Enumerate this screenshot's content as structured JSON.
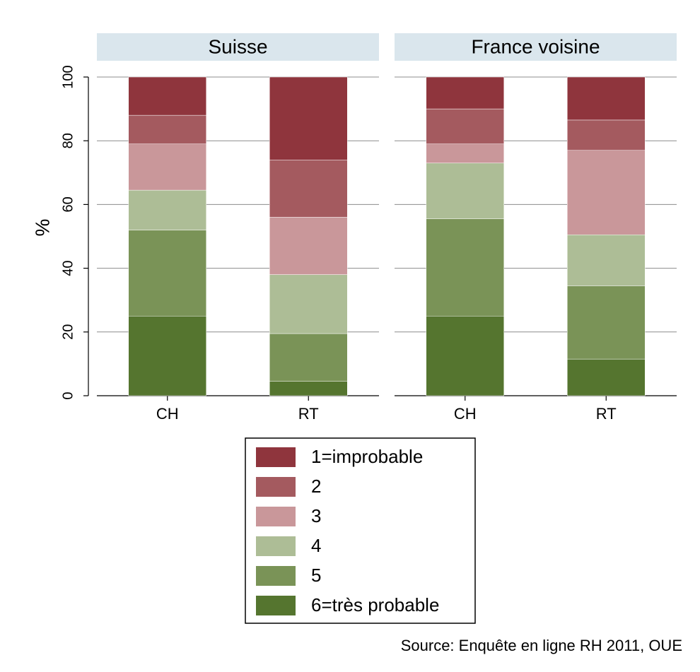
{
  "chart_data": {
    "type": "bar",
    "stacked": true,
    "ylabel": "%",
    "ylim": [
      0,
      100
    ],
    "yticks": [
      0,
      20,
      40,
      60,
      80,
      100
    ],
    "grid": true,
    "categories": [
      "CH",
      "RT"
    ],
    "panels": [
      "Suisse",
      "France voisine"
    ],
    "series": [
      {
        "name": "6=très probable",
        "color": "#55752f",
        "values": [
          [
            25,
            4.5
          ],
          [
            25,
            11.5
          ]
        ]
      },
      {
        "name": "5",
        "color": "#7a9357",
        "values": [
          [
            27,
            15
          ],
          [
            30.5,
            23
          ]
        ]
      },
      {
        "name": "4",
        "color": "#adbd96",
        "values": [
          [
            12.5,
            18.5
          ],
          [
            17.5,
            16
          ]
        ]
      },
      {
        "name": "3",
        "color": "#c9979a",
        "values": [
          [
            14.5,
            18
          ],
          [
            6,
            26.5
          ]
        ]
      },
      {
        "name": "2",
        "color": "#a45a5f",
        "values": [
          [
            9,
            18
          ],
          [
            11,
            9.5
          ]
        ]
      },
      {
        "name": "1=improbable",
        "color": "#8f353d",
        "values": [
          [
            12,
            26
          ],
          [
            10,
            13.5
          ]
        ]
      }
    ],
    "source": "Source: Enquête en ligne RH 2011, OUE"
  }
}
